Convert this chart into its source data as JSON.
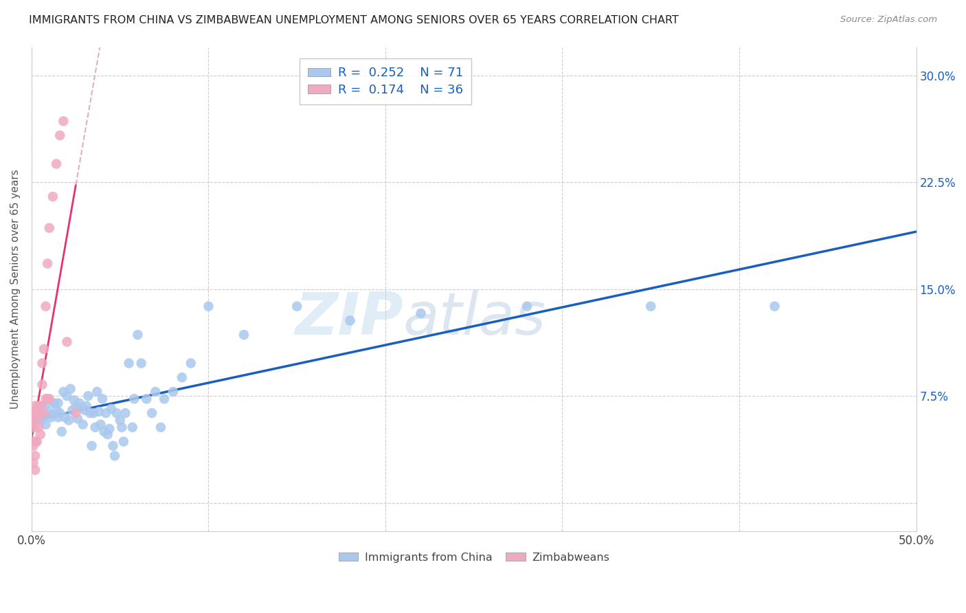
{
  "title": "IMMIGRANTS FROM CHINA VS ZIMBABWEAN UNEMPLOYMENT AMONG SENIORS OVER 65 YEARS CORRELATION CHART",
  "source": "Source: ZipAtlas.com",
  "ylabel": "Unemployment Among Seniors over 65 years",
  "xlim": [
    0.0,
    0.5
  ],
  "ylim": [
    -0.02,
    0.32
  ],
  "ytick_vals": [
    0.0,
    0.075,
    0.15,
    0.225,
    0.3
  ],
  "ytick_labels": [
    "",
    "7.5%",
    "15.0%",
    "22.5%",
    "30.0%"
  ],
  "watermark_zip": "ZIP",
  "watermark_atlas": "atlas",
  "blue_color": "#aac8ee",
  "pink_color": "#f0aac0",
  "line_blue": "#1a5fbd",
  "line_pink": "#e8306a",
  "line_pink_dashed": "#e0b0c0",
  "china_x": [
    0.003,
    0.005,
    0.006,
    0.007,
    0.008,
    0.009,
    0.01,
    0.011,
    0.012,
    0.013,
    0.014,
    0.015,
    0.015,
    0.016,
    0.017,
    0.018,
    0.019,
    0.02,
    0.021,
    0.022,
    0.023,
    0.024,
    0.025,
    0.026,
    0.027,
    0.028,
    0.029,
    0.03,
    0.031,
    0.032,
    0.033,
    0.034,
    0.035,
    0.036,
    0.037,
    0.038,
    0.039,
    0.04,
    0.041,
    0.042,
    0.043,
    0.044,
    0.045,
    0.046,
    0.047,
    0.048,
    0.05,
    0.051,
    0.052,
    0.053,
    0.055,
    0.057,
    0.058,
    0.06,
    0.062,
    0.065,
    0.068,
    0.07,
    0.073,
    0.075,
    0.08,
    0.085,
    0.09,
    0.1,
    0.12,
    0.15,
    0.18,
    0.22,
    0.28,
    0.35,
    0.42
  ],
  "china_y": [
    0.065,
    0.058,
    0.068,
    0.06,
    0.055,
    0.064,
    0.07,
    0.06,
    0.062,
    0.07,
    0.065,
    0.06,
    0.07,
    0.063,
    0.05,
    0.078,
    0.06,
    0.075,
    0.058,
    0.08,
    0.065,
    0.072,
    0.067,
    0.059,
    0.07,
    0.067,
    0.055,
    0.065,
    0.068,
    0.075,
    0.063,
    0.04,
    0.063,
    0.053,
    0.078,
    0.064,
    0.055,
    0.073,
    0.05,
    0.063,
    0.048,
    0.052,
    0.066,
    0.04,
    0.033,
    0.063,
    0.058,
    0.053,
    0.043,
    0.063,
    0.098,
    0.053,
    0.073,
    0.118,
    0.098,
    0.073,
    0.063,
    0.078,
    0.053,
    0.073,
    0.078,
    0.088,
    0.098,
    0.138,
    0.118,
    0.138,
    0.128,
    0.133,
    0.138,
    0.138,
    0.138
  ],
  "zimbab_x": [
    0.0005,
    0.0006,
    0.0008,
    0.001,
    0.001,
    0.0012,
    0.0015,
    0.0015,
    0.002,
    0.002,
    0.002,
    0.002,
    0.0025,
    0.003,
    0.003,
    0.003,
    0.004,
    0.004,
    0.005,
    0.005,
    0.006,
    0.006,
    0.007,
    0.007,
    0.008,
    0.008,
    0.009,
    0.009,
    0.01,
    0.01,
    0.012,
    0.014,
    0.016,
    0.018,
    0.02,
    0.025
  ],
  "zimbab_y": [
    0.06,
    0.063,
    0.055,
    0.04,
    0.028,
    0.063,
    0.053,
    0.043,
    0.033,
    0.023,
    0.068,
    0.063,
    0.043,
    0.063,
    0.058,
    0.043,
    0.068,
    0.053,
    0.068,
    0.048,
    0.098,
    0.083,
    0.108,
    0.063,
    0.138,
    0.073,
    0.168,
    0.073,
    0.193,
    0.073,
    0.215,
    0.238,
    0.258,
    0.268,
    0.113,
    0.063
  ]
}
